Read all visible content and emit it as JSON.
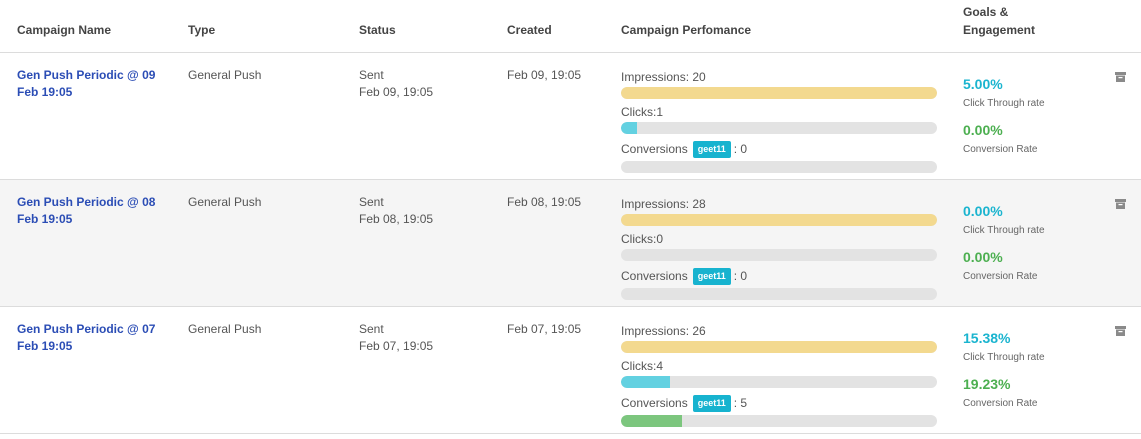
{
  "header": {
    "campaign_name": "Campaign Name",
    "type": "Type",
    "status": "Status",
    "created": "Created",
    "performance": "Campaign Perfomance",
    "goals_line1": "Goals &",
    "goals_line2": "Engagement"
  },
  "colors": {
    "link": "#2b4db5",
    "impressions_bar": "#f3d98f",
    "clicks_bar": "#63d1e1",
    "conversions_bar": "#7cc67e",
    "goal_badge": "#17b3cf",
    "ctr_text": "#1ab4cf",
    "conversion_text": "#4caf50"
  },
  "rows": [
    {
      "name_line1": "Gen Push Periodic @ 09",
      "name_line2": "Feb 19:05",
      "type": "General Push",
      "status": "Sent",
      "status_date": "Feb 09, 19:05",
      "created": "Feb 09, 19:05",
      "impressions_label": "Impressions: 20",
      "clicks_label": "Clicks:1",
      "conversions_label": "Conversions",
      "goal_badge": "geet11",
      "conversions_value": ": 0",
      "impressions_fill": 1.0,
      "clicks_fill": 0.05,
      "conversions_fill": 0.0,
      "ctr": "5.00%",
      "ctr_label": "Click Through rate",
      "conversion_rate": "0.00%",
      "conversion_rate_label": "Conversion Rate",
      "archive_icon": "archive-icon"
    },
    {
      "name_line1": "Gen Push Periodic @ 08",
      "name_line2": "Feb 19:05",
      "type": "General Push",
      "status": "Sent",
      "status_date": "Feb 08, 19:05",
      "created": "Feb 08, 19:05",
      "impressions_label": "Impressions: 28",
      "clicks_label": "Clicks:0",
      "conversions_label": "Conversions",
      "goal_badge": "geet11",
      "conversions_value": ": 0",
      "impressions_fill": 1.0,
      "clicks_fill": 0.0,
      "conversions_fill": 0.0,
      "ctr": "0.00%",
      "ctr_label": "Click Through rate",
      "conversion_rate": "0.00%",
      "conversion_rate_label": "Conversion Rate",
      "archive_icon": "archive-icon"
    },
    {
      "name_line1": "Gen Push Periodic @ 07",
      "name_line2": "Feb 19:05",
      "type": "General Push",
      "status": "Sent",
      "status_date": "Feb 07, 19:05",
      "created": "Feb 07, 19:05",
      "impressions_label": "Impressions: 26",
      "clicks_label": "Clicks:4",
      "conversions_label": "Conversions",
      "goal_badge": "geet11",
      "conversions_value": ": 5",
      "impressions_fill": 1.0,
      "clicks_fill": 0.1538,
      "conversions_fill": 0.1923,
      "ctr": "15.38%",
      "ctr_label": "Click Through rate",
      "conversion_rate": "19.23%",
      "conversion_rate_label": "Conversion Rate",
      "archive_icon": "archive-icon"
    }
  ]
}
